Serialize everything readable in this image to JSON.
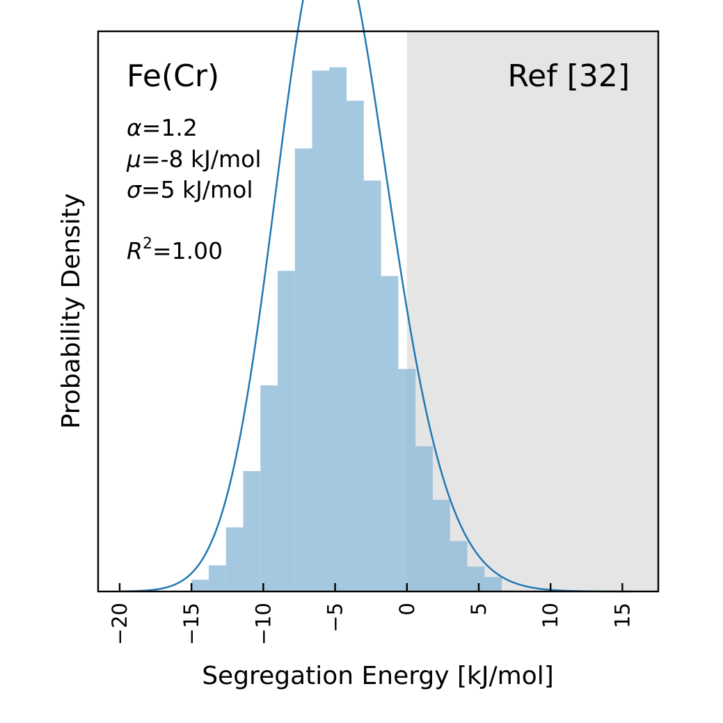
{
  "chart_data": {
    "type": "bar",
    "title": "",
    "xlabel": "Segregation Energy [kJ/mol]",
    "ylabel": "Probability Density",
    "xlim": [
      -21.5,
      17.5
    ],
    "ylim": [
      0,
      0.0856
    ],
    "xticks": [
      -20,
      -15,
      -10,
      -5,
      0,
      5,
      10,
      15
    ],
    "yticks_shown": false,
    "grid": false,
    "legend": "none",
    "shaded_region": {
      "x0": 0,
      "x1": 17.5,
      "color": "#e5e5e5"
    },
    "annotations": {
      "system": "Fe(Cr)",
      "reference": "Ref [32]",
      "alpha_sym": "α",
      "alpha_text": "=1.2",
      "mu_sym": "μ",
      "mu_text": "=-8 kJ/mol",
      "sigma_sym": "σ",
      "sigma_text": "=5 kJ/mol",
      "r2_sym": "R",
      "r2_sup": "2",
      "r2_text": "=1.00"
    },
    "histogram": {
      "name": "Histogram",
      "color": "#8fbad9",
      "bin_edges": [
        -15.0,
        -13.8,
        -12.6,
        -11.4,
        -10.2,
        -9.0,
        -7.8,
        -6.6,
        -5.4,
        -4.2,
        -3.0,
        -1.8,
        -0.6,
        0.6,
        1.8,
        3.0,
        4.2,
        5.4,
        6.6
      ],
      "density": [
        0.0018,
        0.004,
        0.0098,
        0.0184,
        0.0315,
        0.049,
        0.0677,
        0.0796,
        0.0801,
        0.075,
        0.0628,
        0.0482,
        0.034,
        0.0222,
        0.014,
        0.0077,
        0.0038,
        0.0022
      ]
    },
    "fit": {
      "name": "Skew-normal fit",
      "color": "#1f77b4",
      "alpha": 1.2,
      "mu": -8,
      "sigma": 5
    }
  }
}
